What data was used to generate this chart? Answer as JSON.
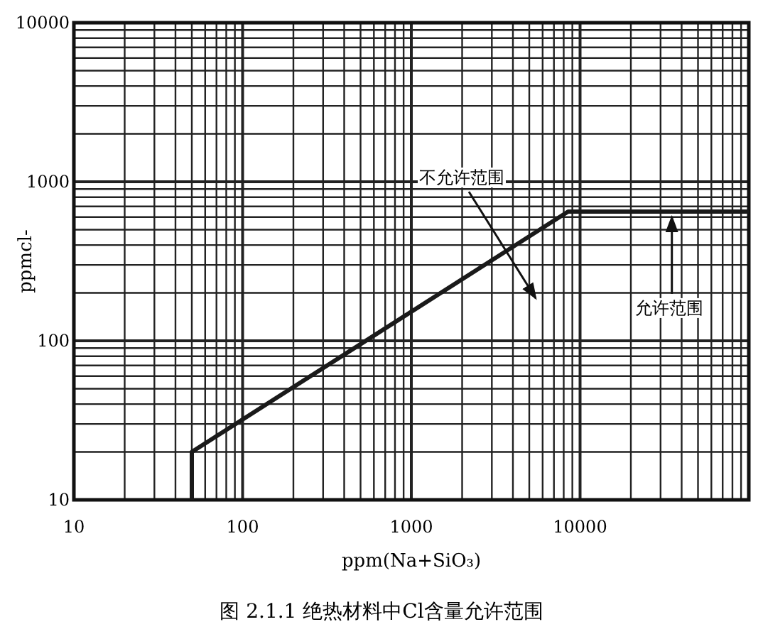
{
  "chart_data": {
    "type": "line",
    "xlabel": "ppm(Na+SiO₃)",
    "ylabel": "ppmcl-",
    "log": "xy",
    "xlim": [
      10,
      100000
    ],
    "ylim": [
      10,
      10000
    ],
    "xticks": [
      10,
      100,
      1000,
      10000
    ],
    "yticks": [
      10,
      100,
      1000,
      10000
    ],
    "grid": true,
    "series": [
      {
        "color": "#1a1a1a",
        "x": [
          50,
          50,
          8500,
          100000
        ],
        "values": [
          10,
          20,
          650,
          650
        ]
      }
    ],
    "annotations": [
      "不允许范围",
      {
        "text": "允许范围",
        "x": 35000,
        "y": 650
      },
      "图 2.1.1  绝热材料中Cl含量允许范围"
    ]
  }
}
